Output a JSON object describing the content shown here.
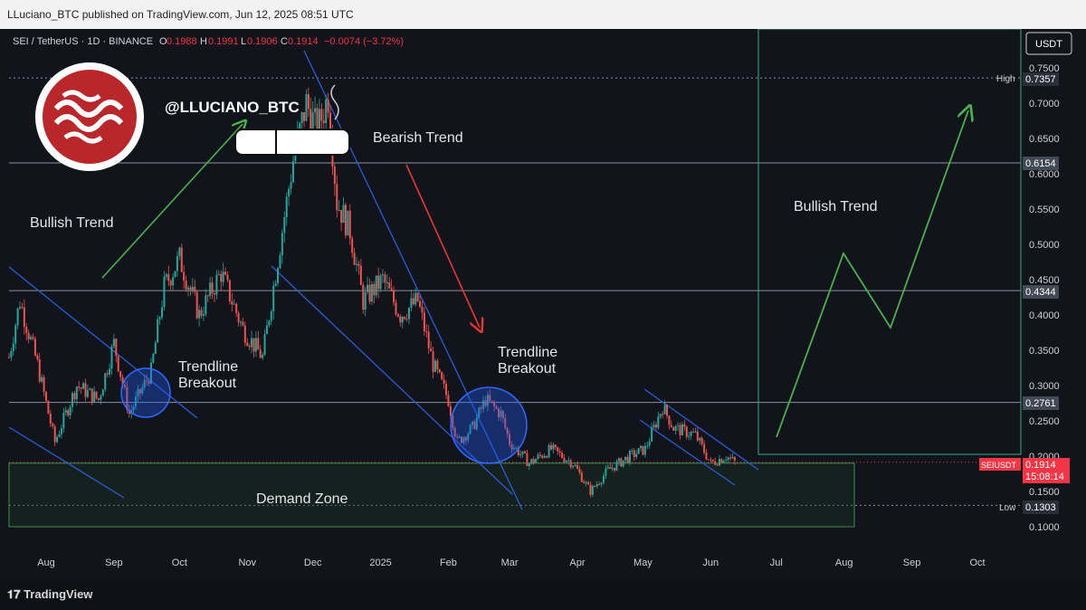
{
  "header": {
    "published": "LLuciano_BTC published on TradingView.com, Jun 12, 2025 08:51 UTC"
  },
  "legend": {
    "symbol": "SEI / TetherUS · 1D · BINANCE",
    "o_label": "O",
    "o": "0.1988",
    "h_label": "H",
    "h": "0.1991",
    "l_label": "L",
    "l": "0.1906",
    "c_label": "C",
    "c": "0.1914",
    "change": "−0.0074 (−3.72%)"
  },
  "watermark": {
    "handle": "@LLUCIANO_BTC"
  },
  "currency": "USDT",
  "annotations": {
    "bullish_left": "Bullish Trend",
    "bearish": "Bearish Trend",
    "trendline1_a": "Trendline",
    "trendline1_b": "Breakout",
    "trendline2_a": "Trendline",
    "trendline2_b": "Breakout",
    "demand": "Demand Zone",
    "bullish_right": "Bullish Trend"
  },
  "price_tags": {
    "high_label": "High",
    "high": "0.7357",
    "level1": "0.6154",
    "level2": "0.4344",
    "level3": "0.2761",
    "symbol_tag": "SEIUSDT",
    "current": "0.1914",
    "countdown": "15:08:14",
    "low_label": "Low",
    "low": "0.1303"
  },
  "footer": {
    "brand": "TradingView"
  },
  "chart_data": {
    "type": "candlestick",
    "symbol": "SEI / TetherUS",
    "timeframe": "1D",
    "exchange": "BINANCE",
    "y_axis": {
      "ticks": [
        "0.7500",
        "0.7000",
        "0.6500",
        "0.6000",
        "0.5500",
        "0.5000",
        "0.4500",
        "0.4000",
        "0.3500",
        "0.3000",
        "0.2500",
        "0.2000",
        "0.1500",
        "0.1000"
      ],
      "ylim": [
        0.08,
        0.78
      ]
    },
    "x_axis": {
      "ticks": [
        "Aug",
        "Sep",
        "Oct",
        "Nov",
        "Dec",
        "2025",
        "Feb",
        "Mar",
        "Apr",
        "May",
        "Jun",
        "Jul",
        "Aug",
        "Sep",
        "Oct"
      ]
    },
    "horizontal_levels": [
      0.7357,
      0.6154,
      0.4344,
      0.2761,
      0.1303
    ],
    "demand_zone": [
      0.1,
      0.19
    ],
    "close_path": [
      [
        "2024-07-15",
        0.34
      ],
      [
        "2024-07-20",
        0.42
      ],
      [
        "2024-07-28",
        0.33
      ],
      [
        "2024-08-05",
        0.22
      ],
      [
        "2024-08-15",
        0.3
      ],
      [
        "2024-08-25",
        0.28
      ],
      [
        "2024-09-01",
        0.36
      ],
      [
        "2024-09-08",
        0.26
      ],
      [
        "2024-09-18",
        0.32
      ],
      [
        "2024-09-24",
        0.44
      ],
      [
        "2024-10-01",
        0.48
      ],
      [
        "2024-10-10",
        0.4
      ],
      [
        "2024-10-20",
        0.46
      ],
      [
        "2024-10-30",
        0.38
      ],
      [
        "2024-11-08",
        0.34
      ],
      [
        "2024-11-15",
        0.48
      ],
      [
        "2024-11-22",
        0.62
      ],
      [
        "2024-11-28",
        0.7
      ],
      [
        "2024-12-03",
        0.66
      ],
      [
        "2024-12-08",
        0.71
      ],
      [
        "2024-12-12",
        0.56
      ],
      [
        "2024-12-18",
        0.52
      ],
      [
        "2024-12-24",
        0.42
      ],
      [
        "2025-01-02",
        0.45
      ],
      [
        "2025-01-10",
        0.4
      ],
      [
        "2025-01-18",
        0.42
      ],
      [
        "2025-01-25",
        0.33
      ],
      [
        "2025-02-01",
        0.28
      ],
      [
        "2025-02-05",
        0.22
      ],
      [
        "2025-02-12",
        0.24
      ],
      [
        "2025-02-18",
        0.28
      ],
      [
        "2025-02-25",
        0.26
      ],
      [
        "2025-03-01",
        0.22
      ],
      [
        "2025-03-10",
        0.19
      ],
      [
        "2025-03-20",
        0.21
      ],
      [
        "2025-03-30",
        0.19
      ],
      [
        "2025-04-07",
        0.15
      ],
      [
        "2025-04-15",
        0.18
      ],
      [
        "2025-04-25",
        0.2
      ],
      [
        "2025-05-02",
        0.21
      ],
      [
        "2025-05-10",
        0.27
      ],
      [
        "2025-05-15",
        0.24
      ],
      [
        "2025-05-25",
        0.23
      ],
      [
        "2025-06-01",
        0.19
      ],
      [
        "2025-06-08",
        0.2
      ],
      [
        "2025-06-12",
        0.1914
      ]
    ],
    "high": 0.7357,
    "low": 0.1303,
    "last": 0.1914
  }
}
